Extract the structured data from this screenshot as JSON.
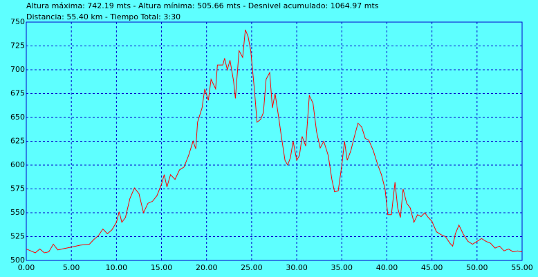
{
  "chart_data": {
    "type": "line",
    "title": "Altura máxima: 742.19 mts - Altura mínima: 505.66 mts - Desnivel acumulado: 1064.97 mts",
    "subtitle": "Distancia: 55.40 km - Tiempo Total: 3:30",
    "x": [
      0,
      0.5,
      1,
      1.5,
      2,
      2.5,
      3,
      3.5,
      4,
      5,
      6,
      7,
      7.5,
      8,
      8.5,
      9,
      9.5,
      10,
      10.3,
      10.6,
      11,
      11.5,
      12,
      12.5,
      12.8,
      13,
      13.5,
      14,
      14.5,
      15,
      15.3,
      15.6,
      16,
      16.5,
      17,
      17.5,
      18,
      18.5,
      18.8,
      19,
      19.5,
      19.8,
      20.2,
      20.5,
      21,
      21.2,
      21.8,
      22,
      22.3,
      22.6,
      23,
      23.2,
      23.6,
      24,
      24.3,
      24.6,
      24.9,
      25.3,
      25.6,
      26,
      26.3,
      26.6,
      27,
      27.3,
      27.6,
      28,
      28.3,
      28.7,
      29,
      29.3,
      29.6,
      30,
      30.3,
      30.6,
      31,
      31.4,
      31.8,
      32.2,
      32.6,
      33,
      33.5,
      33.9,
      34.2,
      34.6,
      35,
      35.3,
      35.6,
      36,
      36.4,
      36.8,
      37.2,
      37.6,
      38,
      38.5,
      39,
      39.4,
      39.8,
      40.1,
      40.5,
      40.9,
      41.2,
      41.5,
      41.8,
      42.2,
      42.6,
      43,
      43.4,
      43.8,
      44.2,
      44.6,
      45,
      45.5,
      46,
      46.5,
      47,
      47.3,
      47.6,
      48,
      48.5,
      49,
      49.5,
      50,
      50.5,
      51,
      51.5,
      52,
      52.5,
      53,
      53.5,
      54,
      54.5,
      55
    ],
    "series": [
      {
        "name": "Altura",
        "color": "#ff0000",
        "values": [
          512,
          510,
          508,
          512,
          508,
          509,
          517,
          511,
          512,
          514,
          516,
          517,
          522,
          526,
          533,
          528,
          532,
          540,
          551,
          540,
          545,
          565,
          576,
          570,
          558,
          550,
          560,
          562,
          568,
          580,
          590,
          577,
          590,
          585,
          595,
          598,
          610,
          625,
          617,
          645,
          660,
          680,
          668,
          690,
          680,
          705,
          705,
          712,
          700,
          710,
          688,
          670,
          720,
          713,
          742,
          735,
          720,
          680,
          645,
          648,
          655,
          690,
          697,
          660,
          675,
          650,
          630,
          605,
          600,
          608,
          625,
          605,
          610,
          630,
          620,
          673,
          665,
          635,
          618,
          625,
          610,
          585,
          572,
          573,
          600,
          625,
          605,
          615,
          630,
          644,
          640,
          628,
          626,
          615,
          600,
          590,
          575,
          548,
          548,
          582,
          555,
          545,
          575,
          560,
          555,
          540,
          548,
          546,
          550,
          545,
          541,
          530,
          527,
          525,
          518,
          515,
          528,
          537,
          527,
          520,
          517,
          520,
          523,
          520,
          518,
          513,
          515,
          510,
          512,
          509,
          510,
          509
        ]
      }
    ],
    "xlim": [
      0,
      55
    ],
    "ylim": [
      500,
      750
    ],
    "xticks": [
      {
        "value": 0,
        "label": "0.00"
      },
      {
        "value": 5,
        "label": "5.00"
      },
      {
        "value": 10,
        "label": "10.00"
      },
      {
        "value": 15,
        "label": "15.00"
      },
      {
        "value": 20,
        "label": "20.00"
      },
      {
        "value": 25,
        "label": "25.00"
      },
      {
        "value": 30,
        "label": "30.00"
      },
      {
        "value": 35,
        "label": "35.00"
      },
      {
        "value": 40,
        "label": "40.00"
      },
      {
        "value": 45,
        "label": "45.00"
      },
      {
        "value": 50,
        "label": "50.00"
      },
      {
        "value": 55,
        "label": "55.00"
      }
    ],
    "yticks": [
      500,
      525,
      550,
      575,
      600,
      625,
      650,
      675,
      700,
      725,
      750
    ],
    "grid": true
  }
}
